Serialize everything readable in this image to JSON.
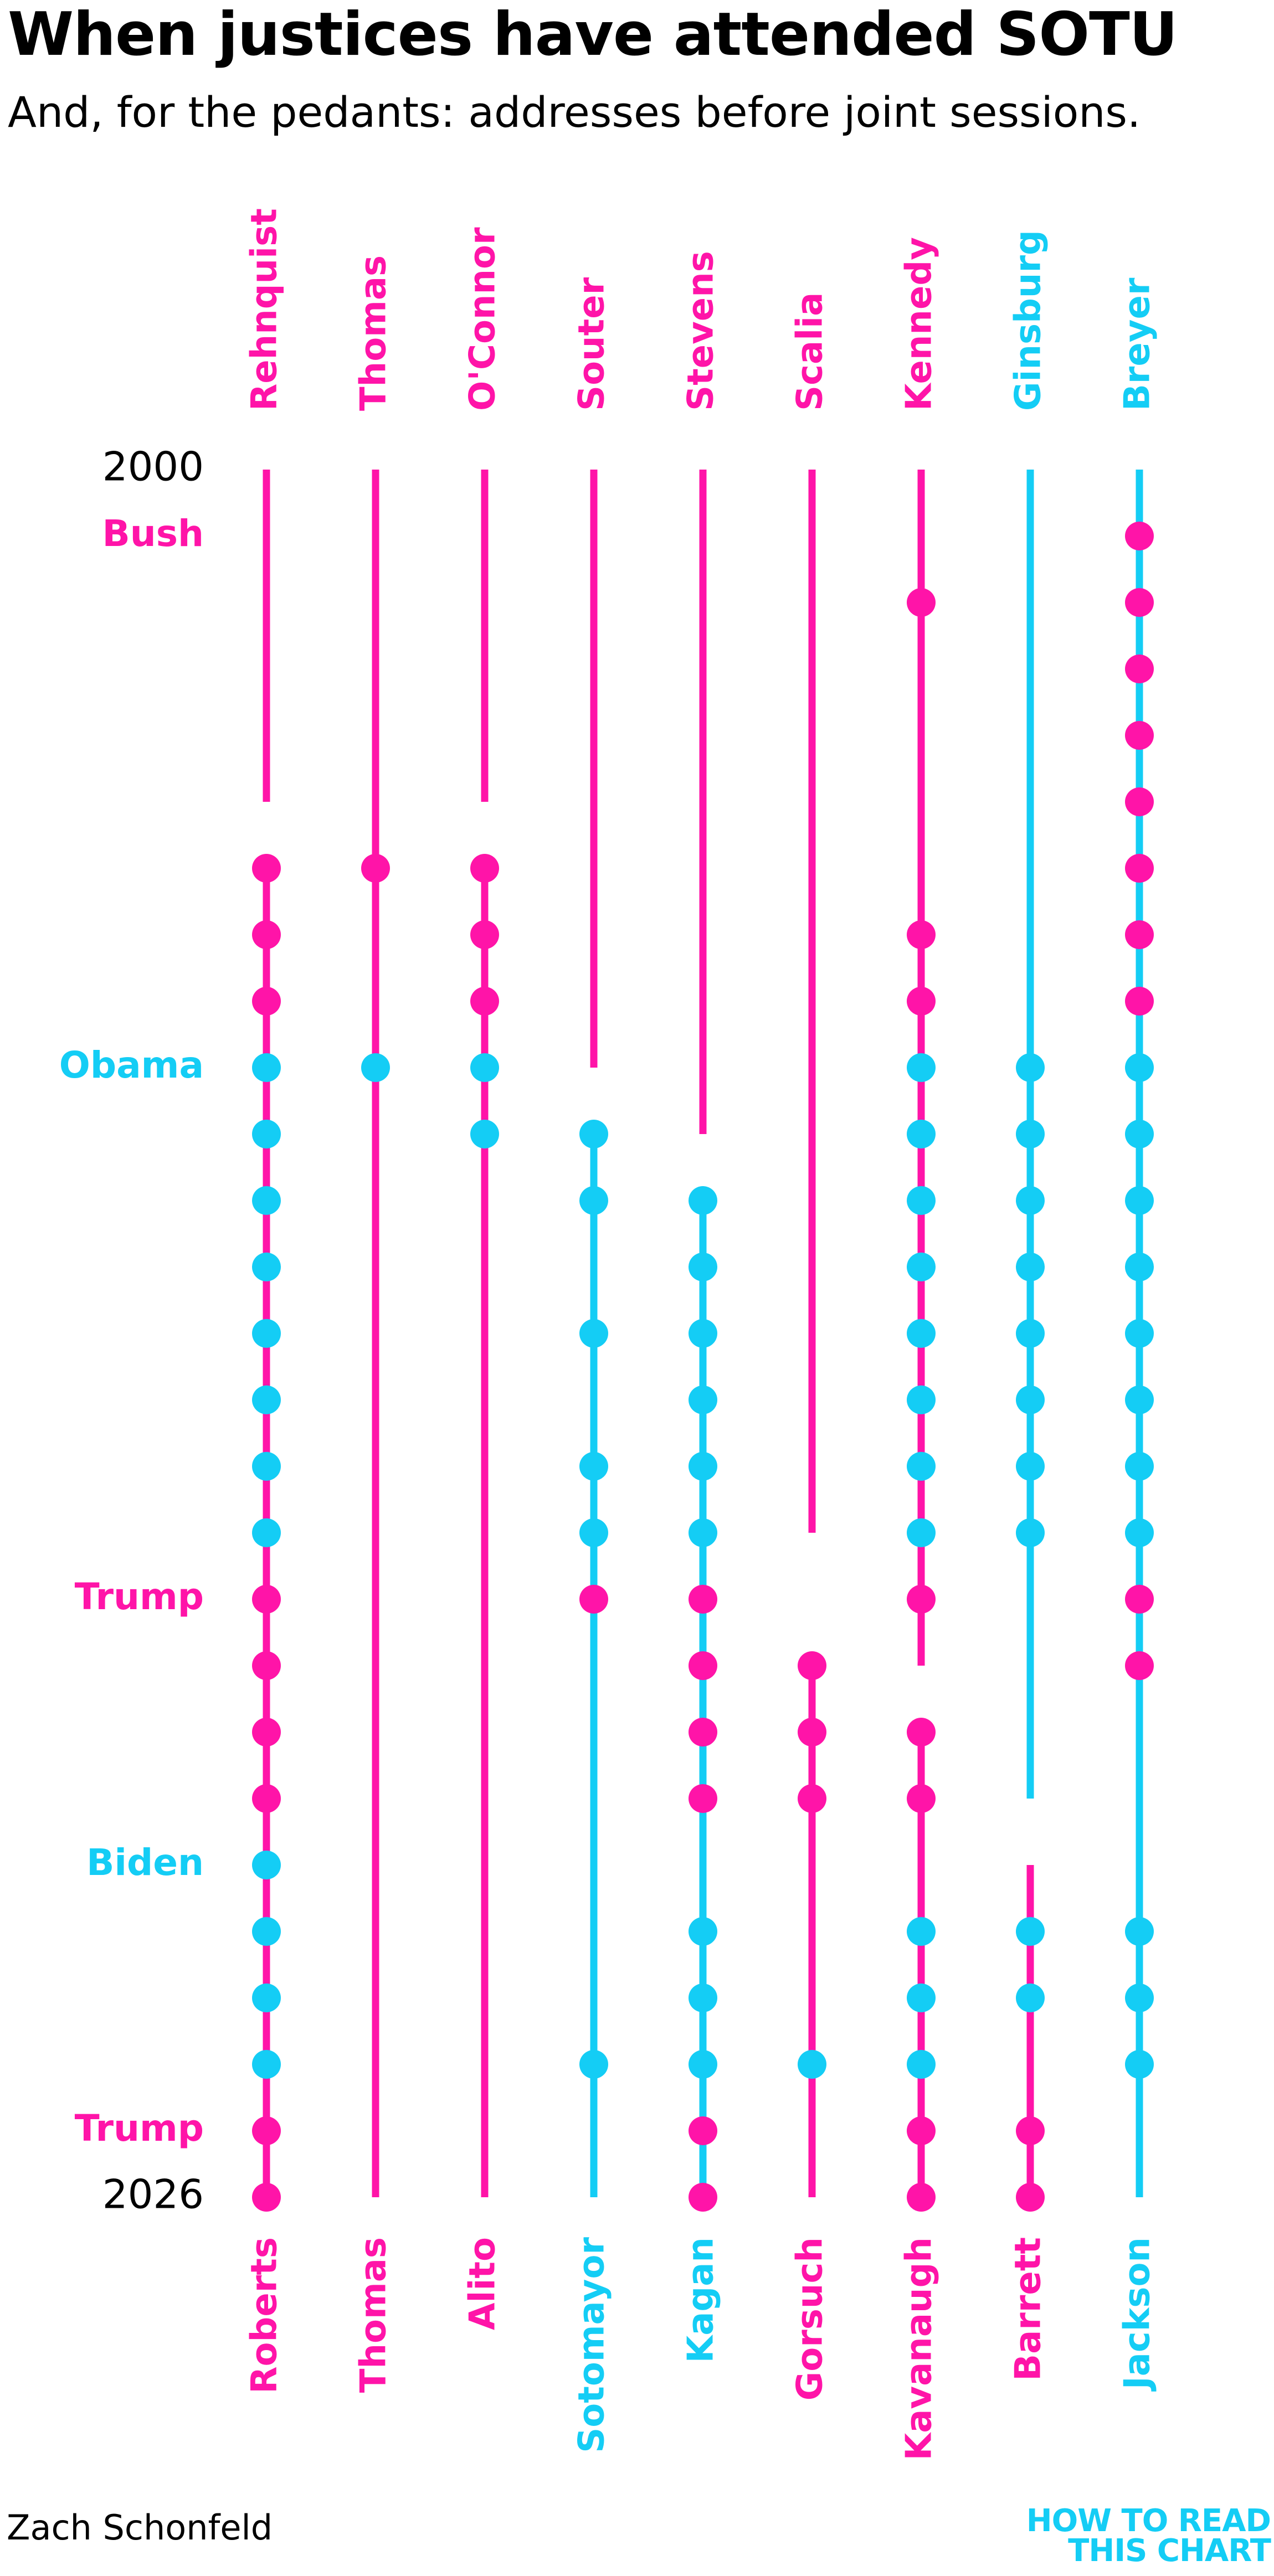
{
  "title": "When justices have attended SOTU",
  "subtitle": "And, for the pedants: addresses before joint sessions.",
  "credit": "Zach Schonfeld",
  "logo": {
    "line1": "HOW TO READ",
    "line2": "THIS CHART"
  },
  "colors": {
    "republican": "#ff14a8",
    "democrat": "#14cdf5",
    "text": "#000000"
  },
  "chart_data": {
    "type": "scatter",
    "title": "When justices have attended SOTU",
    "subtitle": "And, for the pedants: addresses before joint sessions.",
    "y_range": [
      2000,
      2026
    ],
    "year_labels": [
      {
        "label": "2000",
        "year": 2000,
        "color": "#000000"
      },
      {
        "label": "Bush",
        "year": 2001,
        "color": "#ff14a8"
      },
      {
        "label": "Obama",
        "year": 2009,
        "color": "#14cdf5"
      },
      {
        "label": "Trump",
        "year": 2017,
        "color": "#ff14a8"
      },
      {
        "label": "Biden",
        "year": 2021,
        "color": "#14cdf5"
      },
      {
        "label": "Trump",
        "year": 2025,
        "color": "#ff14a8"
      },
      {
        "label": "2026",
        "year": 2026,
        "color": "#000000"
      }
    ],
    "address_party": {
      "2001": "R",
      "2002": "R",
      "2003": "R",
      "2004": "R",
      "2005": "R",
      "2006": "R",
      "2007": "R",
      "2008": "R",
      "2009": "D",
      "2010": "D",
      "2011": "D",
      "2012": "D",
      "2013": "D",
      "2014": "D",
      "2015": "D",
      "2016": "D",
      "2017": "R",
      "2018": "R",
      "2019": "R",
      "2020": "R",
      "2021": "D",
      "2022": "D",
      "2023": "D",
      "2024": "D",
      "2025": "R",
      "2026": "R"
    },
    "seats": [
      {
        "top_name": "Rehnquist",
        "top_color": "#ff14a8",
        "bottom_name": "Roberts",
        "bottom_color": "#ff14a8",
        "lines": [
          {
            "start": 2000,
            "end": 2005,
            "color": "#ff14a8"
          },
          {
            "start": 2006,
            "end": 2026,
            "color": "#ff14a8"
          }
        ],
        "attended": [
          2006,
          2007,
          2008,
          2009,
          2010,
          2011,
          2012,
          2013,
          2014,
          2015,
          2016,
          2017,
          2018,
          2019,
          2020,
          2021,
          2022,
          2023,
          2024,
          2025,
          2026
        ]
      },
      {
        "top_name": "Thomas",
        "top_color": "#ff14a8",
        "bottom_name": "Thomas",
        "bottom_color": "#ff14a8",
        "lines": [
          {
            "start": 2000,
            "end": 2026,
            "color": "#ff14a8"
          }
        ],
        "attended": [
          2006,
          2009
        ]
      },
      {
        "top_name": "O'Connor",
        "top_color": "#ff14a8",
        "bottom_name": "Alito",
        "bottom_color": "#ff14a8",
        "lines": [
          {
            "start": 2000,
            "end": 2005,
            "color": "#ff14a8"
          },
          {
            "start": 2006,
            "end": 2026,
            "color": "#ff14a8"
          }
        ],
        "attended": [
          2006,
          2007,
          2008,
          2009,
          2010
        ]
      },
      {
        "top_name": "Souter",
        "top_color": "#ff14a8",
        "bottom_name": "Sotomayor",
        "bottom_color": "#14cdf5",
        "lines": [
          {
            "start": 2000,
            "end": 2009,
            "color": "#ff14a8"
          },
          {
            "start": 2010,
            "end": 2026,
            "color": "#14cdf5"
          }
        ],
        "attended": [
          2010,
          2011,
          2013,
          2015,
          2016,
          2017,
          2024
        ]
      },
      {
        "top_name": "Stevens",
        "top_color": "#ff14a8",
        "bottom_name": "Kagan",
        "bottom_color": "#14cdf5",
        "lines": [
          {
            "start": 2000,
            "end": 2010,
            "color": "#ff14a8"
          },
          {
            "start": 2011,
            "end": 2026,
            "color": "#14cdf5"
          }
        ],
        "attended": [
          2011,
          2012,
          2013,
          2014,
          2015,
          2016,
          2017,
          2018,
          2019,
          2020,
          2022,
          2023,
          2024,
          2025,
          2026
        ]
      },
      {
        "top_name": "Scalia",
        "top_color": "#ff14a8",
        "bottom_name": "Gorsuch",
        "bottom_color": "#ff14a8",
        "lines": [
          {
            "start": 2000,
            "end": 2016,
            "color": "#ff14a8"
          },
          {
            "start": 2018,
            "end": 2026,
            "color": "#ff14a8"
          }
        ],
        "attended": [
          2018,
          2019,
          2020,
          2024
        ]
      },
      {
        "top_name": "Kennedy",
        "top_color": "#ff14a8",
        "bottom_name": "Kavanaugh",
        "bottom_color": "#ff14a8",
        "lines": [
          {
            "start": 2000,
            "end": 2018,
            "color": "#ff14a8"
          },
          {
            "start": 2019,
            "end": 2026,
            "color": "#ff14a8"
          }
        ],
        "attended": [
          2002,
          2007,
          2008,
          2009,
          2010,
          2011,
          2012,
          2013,
          2014,
          2015,
          2016,
          2017,
          2019,
          2020,
          2022,
          2023,
          2024,
          2025,
          2026
        ]
      },
      {
        "top_name": "Ginsburg",
        "top_color": "#14cdf5",
        "bottom_name": "Barrett",
        "bottom_color": "#ff14a8",
        "lines": [
          {
            "start": 2000,
            "end": 2020,
            "color": "#14cdf5"
          },
          {
            "start": 2021,
            "end": 2026,
            "color": "#ff14a8"
          }
        ],
        "attended": [
          2009,
          2010,
          2011,
          2012,
          2013,
          2014,
          2015,
          2016,
          2022,
          2023,
          2025,
          2026
        ]
      },
      {
        "top_name": "Breyer",
        "top_color": "#14cdf5",
        "bottom_name": "Jackson",
        "bottom_color": "#14cdf5",
        "lines": [
          {
            "start": 2000,
            "end": 2026,
            "color": "#14cdf5"
          }
        ],
        "attended": [
          2001,
          2002,
          2003,
          2004,
          2005,
          2006,
          2007,
          2008,
          2009,
          2010,
          2011,
          2012,
          2013,
          2014,
          2015,
          2016,
          2017,
          2018,
          2022,
          2023,
          2024
        ]
      }
    ]
  }
}
